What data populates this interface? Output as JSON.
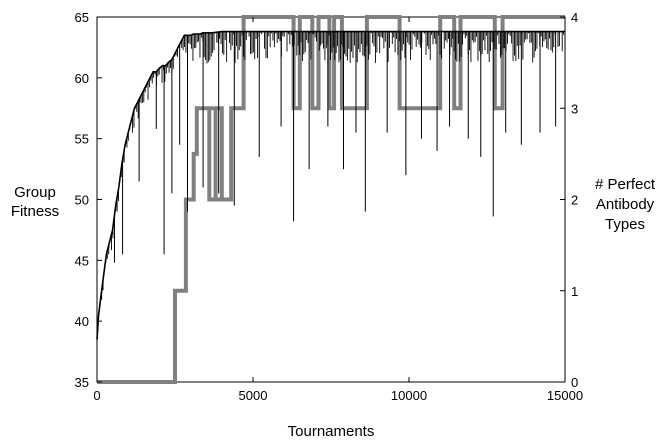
{
  "chart_data": {
    "type": "line",
    "xlabel": "Tournaments",
    "ylabel_left": [
      "Group",
      "Fitness"
    ],
    "ylabel_right": [
      "# Perfect",
      "Antibody",
      "Types"
    ],
    "xlim": [
      0,
      15000
    ],
    "ylim_left": [
      35,
      65
    ],
    "ylim_right": [
      0,
      4
    ],
    "x_ticks": [
      0,
      5000,
      10000,
      15000
    ],
    "y_ticks_left": [
      35,
      40,
      45,
      50,
      55,
      60,
      65
    ],
    "y_ticks_right": [
      0,
      1,
      2,
      3,
      4
    ],
    "grid": false,
    "legend": "none",
    "series": [
      {
        "axis": "left",
        "color": "#000000",
        "x": [
          0,
          50,
          100,
          200,
          300,
          400,
          500,
          600,
          700,
          800,
          900,
          1000,
          1100,
          1200,
          1300,
          1400,
          1500,
          1600,
          1700,
          1800,
          1900,
          2000,
          2100,
          2200,
          2300,
          2400,
          2500,
          2600,
          2700,
          2800,
          2900,
          3000,
          3100,
          3200,
          3300,
          3400,
          3500,
          3700,
          4000,
          4500,
          5000,
          6000,
          7000,
          8000,
          9000,
          10000,
          11000,
          12000,
          13000,
          14000,
          15000
        ],
        "y": [
          38.5,
          40.5,
          41.5,
          43.5,
          45.5,
          46.5,
          47.5,
          49.5,
          51,
          53,
          54.5,
          55.5,
          56.5,
          57.5,
          58,
          58.5,
          59,
          59.5,
          60,
          60.5,
          60.5,
          60.8,
          61,
          61,
          61.3,
          61.5,
          62,
          62.5,
          63,
          63.5,
          63.5,
          63.5,
          63.6,
          63.6,
          63.6,
          63.7,
          63.7,
          63.7,
          63.8,
          63.8,
          63.8,
          63.8,
          63.8,
          63.8,
          63.8,
          63.8,
          63.8,
          63.8,
          63.8,
          63.8,
          63.8
        ],
        "dips": [
          [
            380,
            46.0
          ],
          [
            560,
            44.8
          ],
          [
            820,
            45.5
          ],
          [
            1350,
            51.5
          ],
          [
            1900,
            55.8
          ],
          [
            2150,
            45.5
          ],
          [
            2400,
            50.5
          ],
          [
            2650,
            54.5
          ],
          [
            2900,
            49.0
          ],
          [
            3400,
            51.0
          ],
          [
            3900,
            50.5
          ],
          [
            4400,
            49.5
          ],
          [
            5200,
            53.5
          ],
          [
            5900,
            56.0
          ],
          [
            6300,
            48.2
          ],
          [
            6800,
            52.5
          ],
          [
            7400,
            56.0
          ],
          [
            7900,
            52.5
          ],
          [
            8300,
            55.5
          ],
          [
            8600,
            49.0
          ],
          [
            9300,
            55.5
          ],
          [
            9900,
            52.0
          ],
          [
            10400,
            55.0
          ],
          [
            10900,
            54.0
          ],
          [
            11300,
            56.0
          ],
          [
            11900,
            55.0
          ],
          [
            12300,
            53.5
          ],
          [
            12700,
            48.6
          ],
          [
            13100,
            55.5
          ],
          [
            13600,
            54.5
          ],
          [
            14200,
            55.5
          ],
          [
            14700,
            56.0
          ]
        ]
      },
      {
        "axis": "right",
        "color": "#808080",
        "x": [
          0,
          2500,
          2500,
          2850,
          2850,
          3100,
          3100,
          3200,
          3200,
          3800,
          3800,
          4000,
          4000,
          3600,
          3600,
          4300,
          4300,
          4700,
          4700,
          6300,
          6300,
          6500,
          6500,
          6900,
          6900,
          7100,
          7100,
          7450,
          7450,
          7600,
          7600,
          7850,
          7850,
          8650,
          8650,
          9700,
          9700,
          11000,
          11000,
          11450,
          11450,
          11650,
          11650,
          12750,
          12750,
          13000,
          13000,
          15000
        ],
        "y": [
          0,
          0,
          1,
          1,
          2,
          2,
          2.5,
          2.5,
          3,
          3,
          2,
          2,
          3,
          3,
          2,
          2,
          3,
          3,
          4,
          4,
          3,
          3,
          4,
          4,
          3,
          3,
          4,
          4,
          3,
          3,
          4,
          4,
          3,
          3,
          4,
          4,
          3,
          3,
          4,
          4,
          3,
          3,
          4,
          4,
          3,
          3,
          4,
          4
        ]
      }
    ]
  }
}
